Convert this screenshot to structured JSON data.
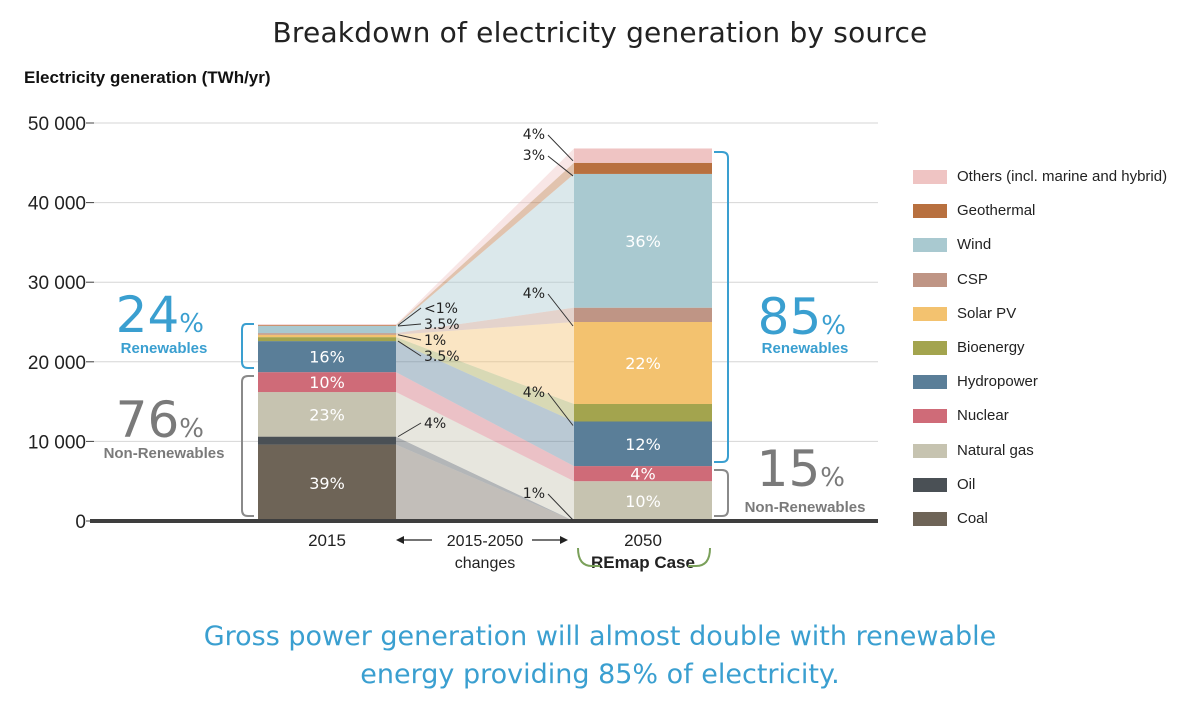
{
  "title": "Breakdown of electricity generation by source",
  "y_axis_label": "Electricity generation (TWh/yr)",
  "footer_lines": [
    "Gross power generation will almost double with renewable",
    "energy providing 85% of electricity."
  ],
  "x_labels": {
    "y2015": "2015",
    "changes": "2015-2050",
    "changes_sub": "changes",
    "y2050": "2050",
    "remap": "REmap Case"
  },
  "callouts": {
    "ren_2015_pct": "24",
    "ren_2015_label": "Renewables",
    "nonren_2015_pct": "76",
    "nonren_2015_label": "Non-Renewables",
    "ren_2050_pct": "85",
    "ren_2050_label": "Renewables",
    "nonren_2050_pct": "15",
    "nonren_2050_label": "Non-Renewables",
    "pct_sign": "%"
  },
  "colors": {
    "Others (incl. marine and hybrid)": "#efc4c3",
    "Geothermal": "#b8703f",
    "Wind": "#a9c9d0",
    "CSP": "#bf9585",
    "Solar PV": "#f3c26f",
    "Bioenergy": "#a3a44e",
    "Hydropower": "#5a7e98",
    "Nuclear": "#cf6b78",
    "Natural gas": "#c6c3b0",
    "Oil": "#4a5055",
    "Coal": "#6e6457",
    "renewable_bracket": "#3a9fd0",
    "nonrenewable_bracket": "#8a8a8a"
  },
  "chart_data": {
    "type": "bar",
    "title": "Breakdown of electricity generation by source",
    "ylabel": "Electricity generation (TWh/yr)",
    "ylim": [
      0,
      50000
    ],
    "yticks": [
      "0",
      "10 000",
      "20 000",
      "30 000",
      "40 000",
      "50 000"
    ],
    "yticks_values": [
      0,
      10000,
      20000,
      30000,
      40000,
      50000
    ],
    "categories": [
      "2015",
      "2050"
    ],
    "series": [
      {
        "name": "Coal",
        "values": [
          9600,
          0
        ],
        "labels": [
          "39%",
          ""
        ]
      },
      {
        "name": "Oil",
        "values": [
          1000,
          0
        ],
        "labels": [
          "",
          ""
        ]
      },
      {
        "name": "Natural gas",
        "values": [
          5600,
          5000
        ],
        "labels": [
          "23%",
          "10%"
        ]
      },
      {
        "name": "Nuclear",
        "values": [
          2500,
          1900
        ],
        "labels": [
          "10%",
          "4%"
        ]
      },
      {
        "name": "Hydropower",
        "values": [
          3900,
          5600
        ],
        "labels": [
          "16%",
          "12%"
        ]
      },
      {
        "name": "Bioenergy",
        "values": [
          500,
          2200
        ],
        "labels": [
          "",
          ""
        ]
      },
      {
        "name": "Solar PV",
        "values": [
          300,
          10300
        ],
        "labels": [
          "",
          "22%"
        ]
      },
      {
        "name": "CSP",
        "values": [
          200,
          1800
        ],
        "labels": [
          "",
          ""
        ]
      },
      {
        "name": "Wind",
        "values": [
          900,
          16800
        ],
        "labels": [
          "",
          "36%"
        ]
      },
      {
        "name": "Geothermal",
        "values": [
          100,
          1400
        ],
        "labels": [
          "",
          ""
        ]
      },
      {
        "name": "Others (incl. marine and hybrid)",
        "values": [
          100,
          1800
        ],
        "labels": [
          "",
          ""
        ]
      }
    ],
    "change_labels": [
      "<1%",
      "3.5%",
      "1%",
      "3.5%",
      "4%"
    ],
    "side_labels_2050": [
      "4%",
      "3%",
      "4%",
      "4%",
      "1%"
    ],
    "legend_order": [
      "Others (incl. marine and hybrid)",
      "Geothermal",
      "Wind",
      "CSP",
      "Solar PV",
      "Bioenergy",
      "Hydropower",
      "Nuclear",
      "Natural gas",
      "Oil",
      "Coal"
    ],
    "legend_position": "right",
    "grid": true
  }
}
